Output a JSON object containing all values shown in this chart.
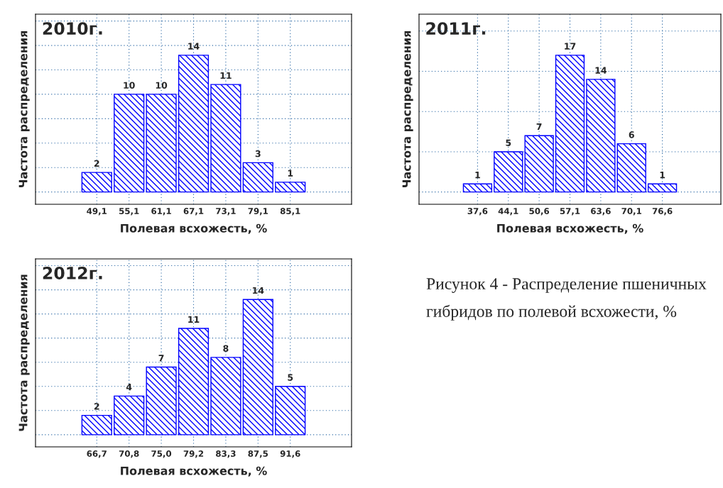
{
  "chart_data": [
    {
      "type": "bar",
      "title": "2010г.",
      "xlabel": "Полевая всхожесть, %",
      "ylabel": "Частота распределения",
      "categories": [
        "49,1",
        "55,1",
        "61,1",
        "67,1",
        "73,1",
        "79,1",
        "85,1"
      ],
      "values": [
        2,
        10,
        10,
        14,
        11,
        3,
        1
      ],
      "color": "#0000ff",
      "data_labels": true,
      "grid": true,
      "tick_labels": "x"
    },
    {
      "type": "bar",
      "title": "2011г.",
      "xlabel": "Полевая всхожесть, %",
      "ylabel": "Частота распределения",
      "categories": [
        "37,6",
        "44,1",
        "50,6",
        "57,1",
        "63,6",
        "70,1",
        "76,6"
      ],
      "values": [
        1,
        5,
        7,
        17,
        14,
        6,
        1
      ],
      "color": "#0000ff",
      "data_labels": true,
      "grid": true,
      "tick_labels": "x"
    },
    {
      "type": "bar",
      "title": "2012г.",
      "xlabel": "Полевая всхожесть, %",
      "ylabel": "Частота распределения",
      "categories": [
        "66,7",
        "70,8",
        "75,0",
        "79,2",
        "83,3",
        "87,5",
        "91,6"
      ],
      "values": [
        2,
        4,
        7,
        11,
        8,
        14,
        5
      ],
      "color": "#0000ff",
      "data_labels": true,
      "grid": true,
      "tick_labels": "x"
    },
    {
      "type": "other",
      "annotations": [
        "Рисунок 4 - Распределение пшеничных гибридов по полевой всхожести, %"
      ]
    }
  ]
}
